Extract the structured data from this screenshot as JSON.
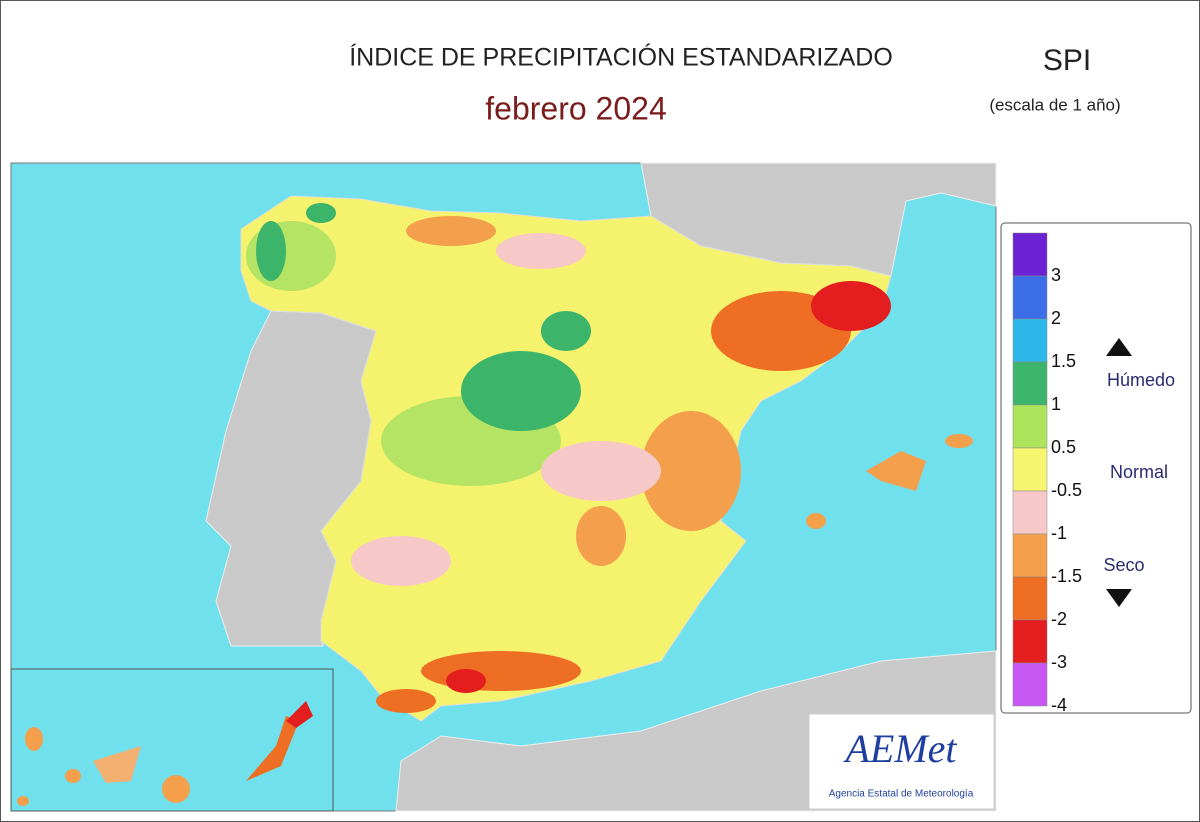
{
  "header": {
    "title": "ÍNDICE DE PRECIPITACIÓN ESTANDARIZADO",
    "period": "febrero  2024",
    "index": "SPI",
    "scale": "(escala de 1 año)"
  },
  "legend": {
    "colors": [
      "#6b22d2",
      "#3b6ee6",
      "#2cb9ea",
      "#3cb46a",
      "#aee35c",
      "#f7f56f",
      "#f7c8c8",
      "#f39f4c",
      "#ee6e24",
      "#e41e1e",
      "#c657f2"
    ],
    "labels": [
      "3",
      "2",
      "1.5",
      "1",
      "0.5",
      "-0.5",
      "-1",
      "-1.5",
      "-2",
      "-3",
      "-4"
    ],
    "wet": "Húmedo",
    "normal": "Normal",
    "dry": "Seco"
  },
  "logo": {
    "name": "AEMet",
    "agency": "Agencia Estatal de Meteorología"
  }
}
